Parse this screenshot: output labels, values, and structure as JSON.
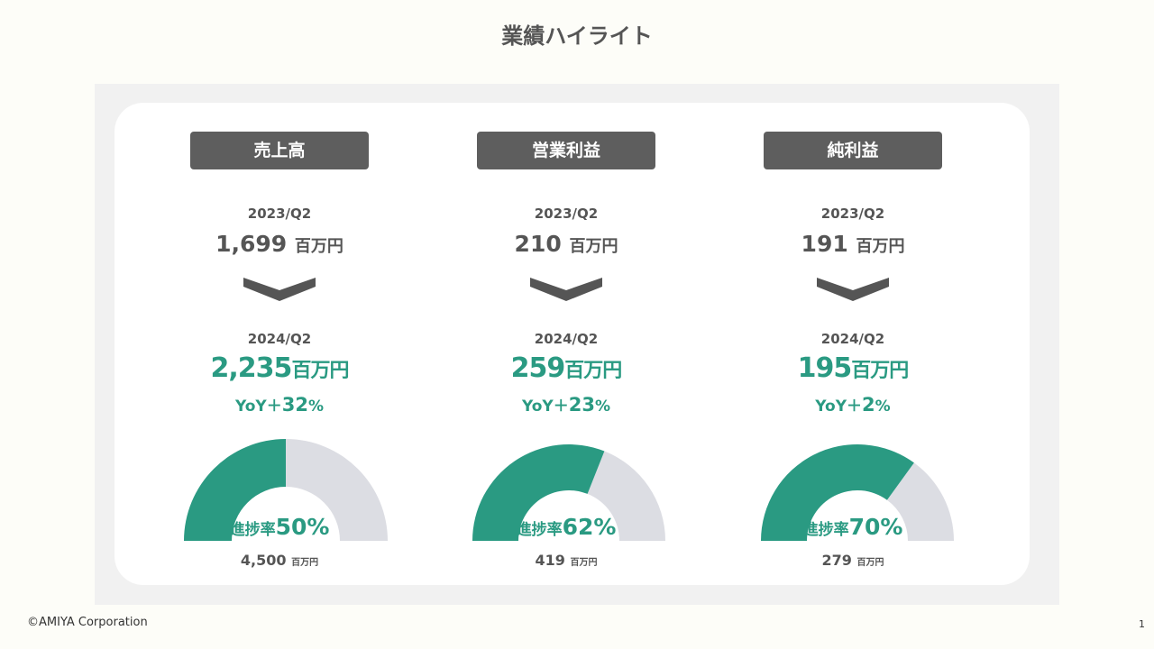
{
  "title": "業績ハイライト",
  "colors": {
    "accent": "#2a9a82",
    "track": "#dcdde3",
    "pill": "#5e5e5e"
  },
  "unit": "百万円",
  "rate_label": "進捗率",
  "yoy_label": "YoY＋",
  "metrics": [
    {
      "label": "売上高",
      "prev_period": "2023/Q2",
      "prev_value": "1,699",
      "cur_period": "2024/Q2",
      "cur_value": "2,235",
      "yoy": "32",
      "yoy_suffix": "%",
      "progress": 50,
      "progress_text": "50%",
      "target": "4,500"
    },
    {
      "label": "営業利益",
      "prev_period": "2023/Q2",
      "prev_value": "210",
      "cur_period": "2024/Q2",
      "cur_value": "259",
      "yoy": "23",
      "yoy_suffix": "%",
      "progress": 62,
      "progress_text": "62%",
      "target": "419"
    },
    {
      "label": "純利益",
      "prev_period": "2023/Q2",
      "prev_value": "191",
      "cur_period": "2024/Q2",
      "cur_value": "195",
      "yoy": "2",
      "yoy_suffix": "%",
      "progress": 70,
      "progress_text": "70%",
      "target": "279"
    }
  ],
  "footer": "©AMIYA Corporation",
  "page_number": "1"
}
